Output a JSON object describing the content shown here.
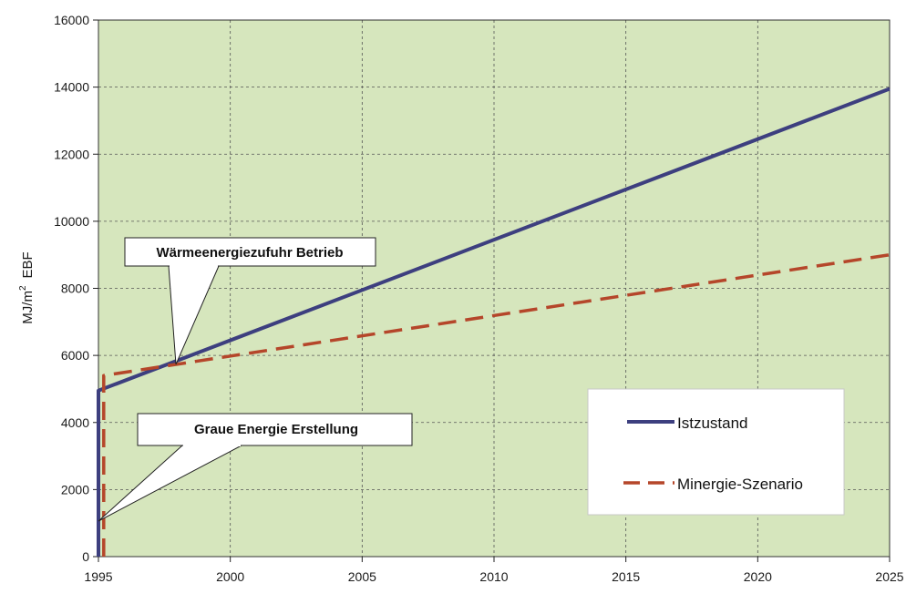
{
  "chart_data": {
    "type": "line",
    "ylabel": "MJ/m",
    "ylabel_sup": "2",
    "ylabel_suffix": "EBF",
    "xlim": [
      1995,
      2025
    ],
    "ylim": [
      0,
      16000
    ],
    "x_ticks": [
      1995,
      2000,
      2005,
      2010,
      2015,
      2020,
      2025
    ],
    "y_ticks": [
      0,
      2000,
      4000,
      6000,
      8000,
      10000,
      12000,
      14000,
      16000
    ],
    "grid": true,
    "background_color": "#d6e6bd",
    "series": [
      {
        "name": "Istzustand",
        "color": "#3d3f7f",
        "style": "solid",
        "points": [
          [
            1995,
            0
          ],
          [
            1995,
            4950
          ],
          [
            2025,
            13950
          ]
        ]
      },
      {
        "name": "Minergie-Szenario",
        "color": "#b5462a",
        "style": "dashed",
        "points": [
          [
            1995.2,
            0
          ],
          [
            1995.2,
            5400
          ],
          [
            2025,
            9000
          ]
        ]
      }
    ],
    "annotations": [
      {
        "text": "Wärmeenergiezufuhr Betrieb",
        "target": [
          1997.8,
          5750
        ]
      },
      {
        "text": "Graue Energie Erstellung",
        "target": [
          1995,
          1100
        ]
      }
    ],
    "legend_position": "bottom-right"
  }
}
